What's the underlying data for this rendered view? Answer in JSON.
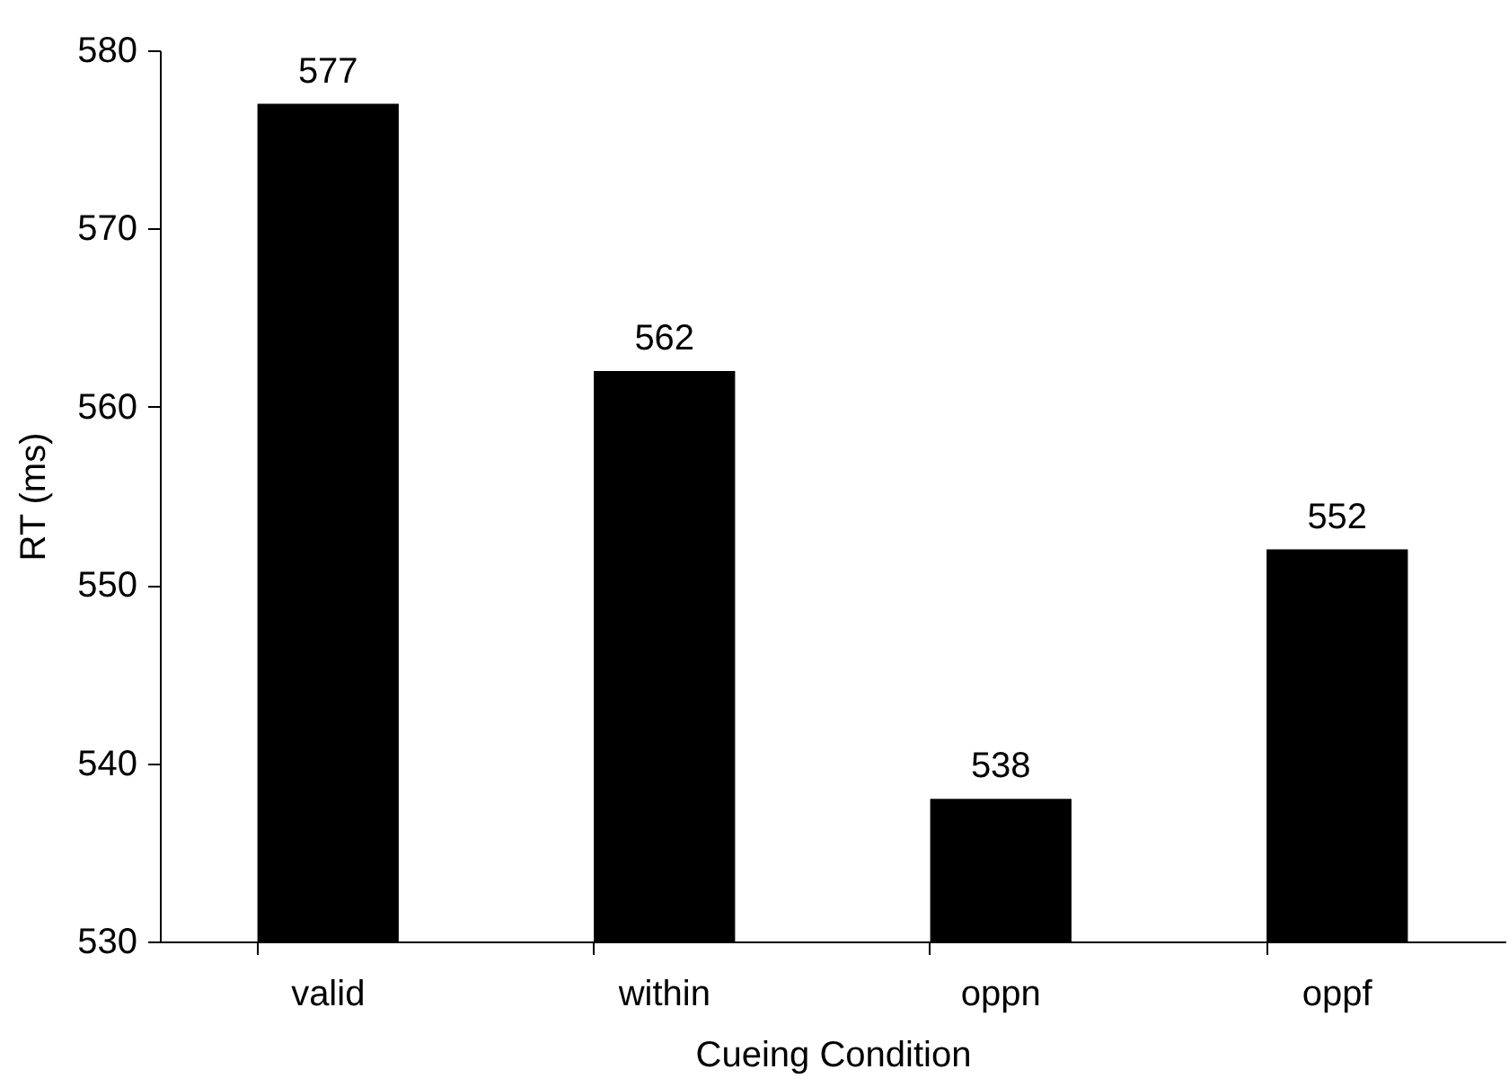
{
  "chart_data": {
    "type": "bar",
    "xlabel": "Cueing Condition",
    "ylabel": "RT (ms)",
    "categories": [
      "valid",
      "within",
      "oppn",
      "oppf"
    ],
    "values": [
      577,
      562,
      538,
      552
    ],
    "color": "#000000",
    "ylim": [
      530,
      580
    ],
    "yticks": [
      530,
      540,
      550,
      560,
      570,
      580
    ],
    "data_labels": true
  }
}
